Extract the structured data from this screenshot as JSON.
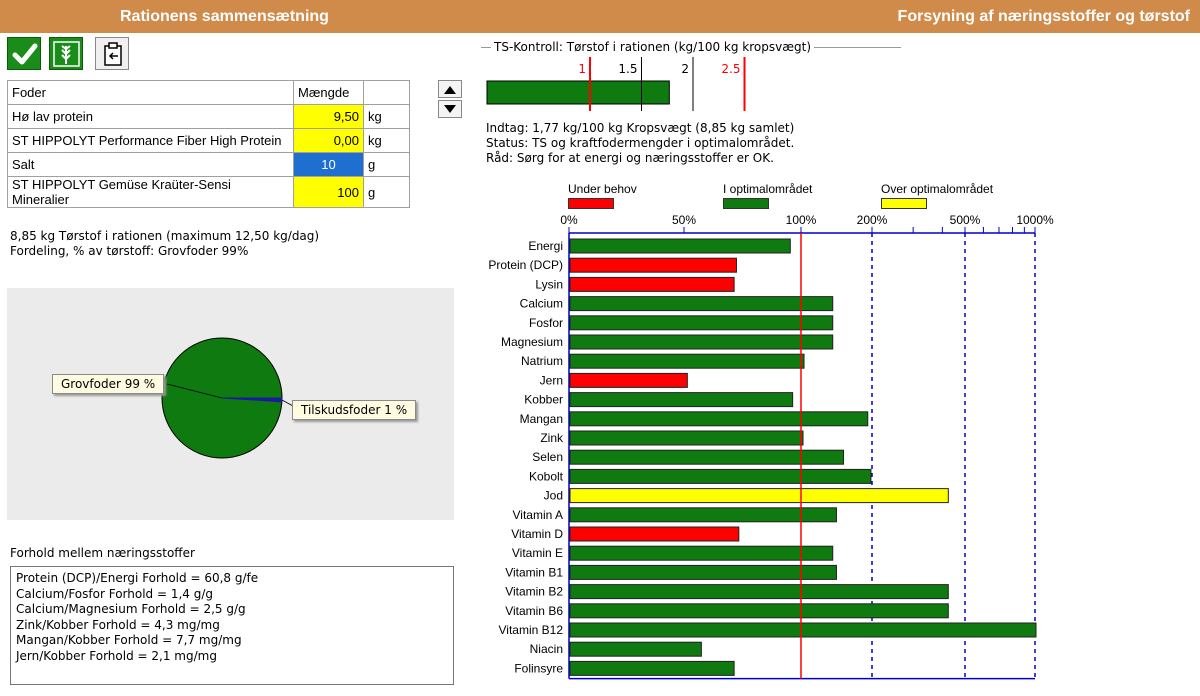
{
  "header": {
    "left_title": "Rationens sammensætning",
    "right_title": "Forsyning af næringsstoffer og tørstof"
  },
  "toolbar": [
    {
      "name": "accept-button",
      "icon": "checkmark-icon"
    },
    {
      "name": "feed-button",
      "icon": "grain-icon"
    },
    {
      "name": "export-button",
      "icon": "clipboard-icon"
    }
  ],
  "feed_table": {
    "headers": [
      "Foder",
      "Mængde",
      ""
    ],
    "rows": [
      {
        "name": "Hø lav protein",
        "amount": "9,50",
        "unit": "kg",
        "style": "yellow"
      },
      {
        "name": "ST HIPPOLYT Performance Fiber High Protein",
        "amount": "0,00",
        "unit": "kg",
        "style": "yellow"
      },
      {
        "name": "Salt",
        "amount": "10",
        "unit": "g",
        "style": "blue"
      },
      {
        "name": "ST HIPPOLYT Gemüse Kraüter-Sensi Mineralier",
        "amount": "100",
        "unit": "g",
        "style": "yellow"
      }
    ]
  },
  "summary": {
    "line1": "8,85 kg Tørstof i rationen (maximum 12,50 kg/dag)",
    "line2": "Fordeling, % av tørstoff: Grovfoder 99%"
  },
  "pie": {
    "slices": [
      {
        "label": "Grovfoder 99 %",
        "value": 99,
        "color": "#0f7a0f"
      },
      {
        "label": "Tilskudsfoder 1 %",
        "value": 1,
        "color": "#1a1aa0"
      }
    ]
  },
  "ratios": {
    "title": "Forhold mellem næringsstoffer",
    "lines": [
      "Protein (DCP)/Energi Forhold = 60,8 g/fe",
      "Calcium/Fosfor Forhold = 1,4 g/g",
      "Calcium/Magnesium Forhold = 2,5 g/g",
      "Zink/Kobber Forhold = 4,3 mg/mg",
      "Mangan/Kobber Forhold = 7,7 mg/mg",
      "Jern/Kobber Forhold = 2,1 mg/mg"
    ]
  },
  "ts_control": {
    "title": "TS-Kontroll: Tørstof i rationen (kg/100 kg kropsvægt)",
    "value": 1.77,
    "scale_max": 2.9,
    "marks": [
      {
        "value": 1,
        "label": "1",
        "color": "#ff0000"
      },
      {
        "value": 1.5,
        "label": "1.5",
        "color": "#000000"
      },
      {
        "value": 2,
        "label": "2",
        "color": "#000000"
      },
      {
        "value": 2.5,
        "label": "2.5",
        "color": "#ff0000"
      }
    ],
    "intake": "Indtag: 1,77 kg/100 kg Kropsvægt (8,85 kg samlet)",
    "status": "Status: TS og kraftfodermengder i optimalområdet.",
    "advice": "Råd: Sørg for at energi og næringsstoffer er OK."
  },
  "colors": {
    "under": "#ff0000",
    "optimal": "#0f7a0f",
    "over": "#ffff00",
    "axis": "#0000cc"
  },
  "chart_data": {
    "type": "bar",
    "orientation": "horizontal",
    "x_ticks": [
      "0%",
      "50%",
      "100%",
      "200%",
      "500%",
      "1000%"
    ],
    "legend": [
      {
        "label": "Under behov",
        "status": "under"
      },
      {
        "label": "I optimalområdet",
        "status": "optimal"
      },
      {
        "label": "Over optimalområdet",
        "status": "over"
      }
    ],
    "categories": [
      "Energi",
      "Protein (DCP)",
      "Lysin",
      "Calcium",
      "Fosfor",
      "Magnesium",
      "Natrium",
      "Jern",
      "Kobber",
      "Mangan",
      "Zink",
      "Selen",
      "Kobolt",
      "Jod",
      "Vitamin A",
      "Vitamin D",
      "Vitamin E",
      "Vitamin B1",
      "Vitamin B2",
      "Vitamin B6",
      "Vitamin B12",
      "Niacin",
      "Folinsyre"
    ],
    "values": [
      95,
      72,
      71,
      135,
      135,
      135,
      102,
      51,
      96,
      190,
      101,
      150,
      196,
      420,
      140,
      73,
      135,
      140,
      420,
      420,
      1000,
      57,
      71
    ],
    "status": [
      "optimal",
      "under",
      "under",
      "optimal",
      "optimal",
      "optimal",
      "optimal",
      "under",
      "optimal",
      "optimal",
      "optimal",
      "optimal",
      "optimal",
      "over",
      "optimal",
      "under",
      "optimal",
      "optimal",
      "optimal",
      "optimal",
      "optimal",
      "optimal",
      "optimal"
    ]
  }
}
